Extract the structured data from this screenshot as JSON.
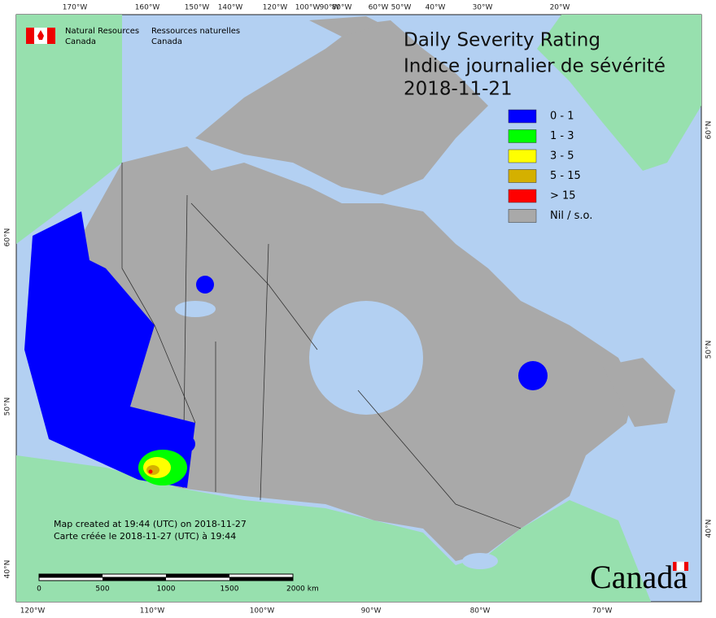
{
  "header": {
    "agency_en": [
      "Natural Resources",
      "Canada"
    ],
    "agency_fr": [
      "Ressources naturelles",
      "Canada"
    ]
  },
  "title": [
    "Daily Severity Rating",
    "Indice journalier de sévérité",
    "2018-11-21"
  ],
  "legend": [
    {
      "label": "0 - 1",
      "color": "#0000ff"
    },
    {
      "label": "1 - 3",
      "color": "#00ff00"
    },
    {
      "label": "3 - 5",
      "color": "#ffff00"
    },
    {
      "label": "5 - 15",
      "color": "#d4b000"
    },
    {
      "label": "> 15",
      "color": "#ff0000"
    },
    {
      "label": "Nil / s.o.",
      "color": "#a9a9a9"
    }
  ],
  "graticule": {
    "top": [
      "170°W",
      "160°W",
      "150°W",
      "140°W",
      "120°W",
      "100°W",
      "90°W",
      "80°W",
      "60°W",
      "50°W",
      "40°W",
      "30°W",
      "20°W"
    ],
    "bottom": [
      "120°W",
      "110°W",
      "100°W",
      "90°W",
      "80°W",
      "70°W"
    ],
    "left": [
      "60°N",
      "50°N",
      "40°N"
    ],
    "right": [
      "60°N",
      "50°N",
      "40°N"
    ]
  },
  "notes": [
    "Map created at 19:44 (UTC) on 2018-11-27",
    "Carte créée le 2018-11-27 (UTC) à 19:44"
  ],
  "scale_bar": [
    "0",
    "500",
    "1000",
    "1500",
    "2000 km"
  ],
  "wordmark": "Canada"
}
